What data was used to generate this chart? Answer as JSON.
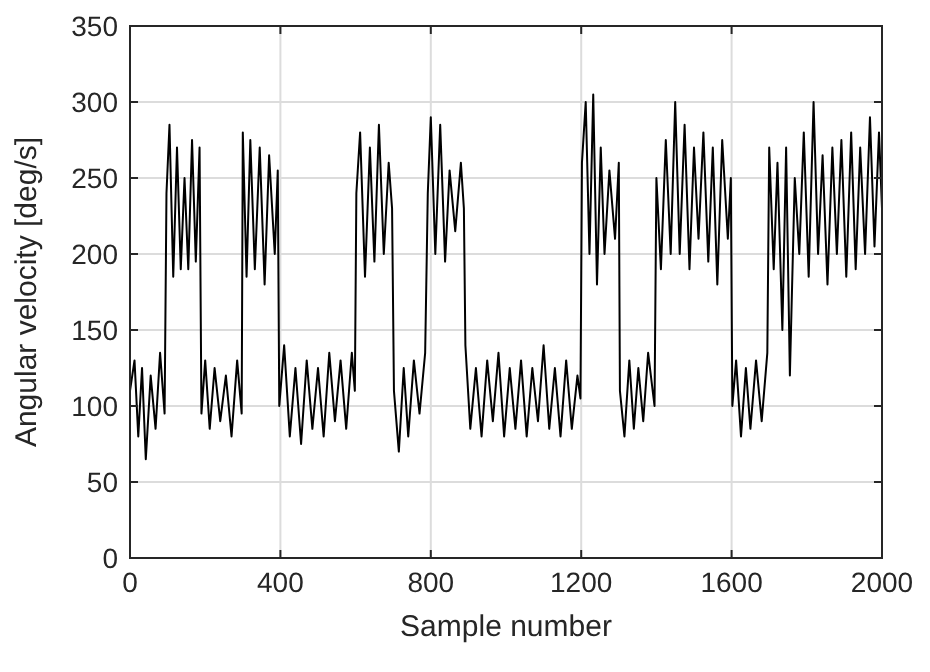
{
  "chart_data": {
    "type": "line",
    "xlabel": "Sample number",
    "ylabel": "Angular velocity [deg/s]",
    "xlim": [
      0,
      2000
    ],
    "ylim": [
      0,
      350
    ],
    "xticks": [
      0,
      400,
      800,
      1200,
      1600,
      2000
    ],
    "yticks": [
      0,
      50,
      100,
      150,
      200,
      250,
      300,
      350
    ],
    "grid": true,
    "series": [
      {
        "color": "#000000",
        "x": [
          0,
          12,
          22,
          32,
          42,
          55,
          68,
          80,
          92,
          97,
          105,
          115,
          125,
          135,
          145,
          155,
          165,
          175,
          185,
          190,
          200,
          212,
          225,
          240,
          255,
          270,
          285,
          297,
          300,
          310,
          320,
          332,
          345,
          358,
          370,
          385,
          393,
          397,
          410,
          425,
          440,
          455,
          470,
          485,
          500,
          515,
          530,
          545,
          560,
          575,
          590,
          598,
          602,
          612,
          625,
          638,
          650,
          662,
          675,
          688,
          697,
          702,
          715,
          728,
          740,
          755,
          770,
          785,
          792,
          800,
          812,
          825,
          838,
          850,
          865,
          880,
          888,
          892,
          905,
          920,
          935,
          950,
          965,
          980,
          995,
          1010,
          1025,
          1040,
          1055,
          1070,
          1085,
          1100,
          1115,
          1130,
          1145,
          1160,
          1175,
          1190,
          1198,
          1202,
          1212,
          1222,
          1232,
          1242,
          1252,
          1262,
          1275,
          1290,
          1300,
          1303,
          1315,
          1328,
          1340,
          1352,
          1365,
          1378,
          1395,
          1400,
          1412,
          1425,
          1438,
          1450,
          1462,
          1475,
          1488,
          1500,
          1512,
          1525,
          1538,
          1550,
          1562,
          1575,
          1590,
          1598,
          1602,
          1612,
          1625,
          1638,
          1650,
          1665,
          1680,
          1695,
          1700,
          1712,
          1722,
          1735,
          1745,
          1755,
          1768,
          1780,
          1792,
          1805,
          1818,
          1830,
          1842,
          1855,
          1868,
          1880,
          1892,
          1905,
          1918,
          1930,
          1942,
          1955,
          1968,
          1980,
          1992,
          2000
        ],
        "values": [
          110,
          130,
          80,
          125,
          65,
          120,
          85,
          135,
          95,
          240,
          285,
          185,
          270,
          190,
          250,
          190,
          275,
          195,
          270,
          95,
          130,
          85,
          125,
          90,
          120,
          80,
          130,
          95,
          280,
          185,
          275,
          190,
          270,
          180,
          265,
          200,
          255,
          100,
          140,
          80,
          125,
          75,
          130,
          85,
          125,
          80,
          135,
          90,
          130,
          85,
          135,
          110,
          240,
          280,
          185,
          270,
          195,
          285,
          200,
          260,
          230,
          110,
          70,
          125,
          80,
          130,
          95,
          135,
          240,
          290,
          200,
          285,
          195,
          255,
          215,
          260,
          230,
          140,
          85,
          125,
          80,
          130,
          90,
          135,
          80,
          125,
          85,
          130,
          80,
          125,
          90,
          140,
          85,
          125,
          80,
          130,
          85,
          120,
          105,
          260,
          300,
          200,
          305,
          180,
          270,
          200,
          255,
          210,
          260,
          110,
          80,
          130,
          85,
          125,
          90,
          135,
          100,
          250,
          190,
          275,
          200,
          300,
          200,
          285,
          190,
          270,
          210,
          280,
          195,
          270,
          180,
          275,
          210,
          250,
          100,
          130,
          80,
          125,
          85,
          130,
          90,
          135,
          270,
          190,
          260,
          150,
          270,
          120,
          250,
          200,
          280,
          185,
          300,
          200,
          265,
          180,
          270,
          200,
          275,
          185,
          280,
          190,
          270,
          200,
          290,
          205,
          280,
          230
        ]
      }
    ]
  }
}
